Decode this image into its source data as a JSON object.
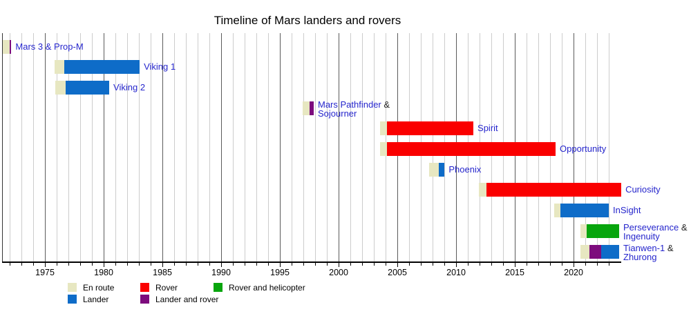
{
  "title": "Timeline of Mars landers and rovers",
  "colors": {
    "en_route": "#e7e7c1",
    "lander": "#0e6cc8",
    "rover": "#fa0000",
    "rover_helicopter": "#07a50d",
    "lander_rover": "#7d0c7d"
  },
  "text_colors": {
    "link": "#2525cc",
    "plain": "#222222"
  },
  "chart_data": {
    "type": "bar",
    "subtype": "gantt_timeline",
    "title": "Timeline of Mars landers and rovers",
    "x_axis": {
      "start": 1971.35,
      "end": 2024.06,
      "minor_tick_every_years": 1,
      "labeled_ticks": [
        1975,
        1980,
        1985,
        1990,
        1995,
        2000,
        2005,
        2010,
        2015,
        2020
      ],
      "grid": "vertical, yearly minor + darker 5-year major"
    },
    "categories": [
      "en_route",
      "lander",
      "rover",
      "rover_helicopter",
      "lander_rover"
    ],
    "rows": [
      {
        "slug": "mars-3-prop-m",
        "name": "Mars 3 & Prop-M",
        "label_lines": [
          [
            [
              "Mars 3 & Prop-M",
              "link"
            ]
          ]
        ],
        "segments": [
          {
            "cat": "en_route",
            "from": 1971.4,
            "to": 1971.99
          },
          {
            "cat": "lander_rover",
            "from": 1971.99,
            "to": 1972.14
          }
        ]
      },
      {
        "slug": "viking-1",
        "name": "Viking 1",
        "label_lines": [
          [
            [
              "Viking 1",
              "link"
            ]
          ]
        ],
        "segments": [
          {
            "cat": "en_route",
            "from": 1975.82,
            "to": 1976.65
          },
          {
            "cat": "lander",
            "from": 1976.65,
            "to": 1983.06
          }
        ]
      },
      {
        "slug": "viking-2",
        "name": "Viking 2",
        "label_lines": [
          [
            [
              "Viking 2",
              "link"
            ]
          ]
        ],
        "segments": [
          {
            "cat": "en_route",
            "from": 1975.88,
            "to": 1976.76
          },
          {
            "cat": "lander",
            "from": 1976.76,
            "to": 1980.47
          }
        ]
      },
      {
        "slug": "mars-pathfinder-sojourner",
        "name": "Mars Pathfinder & Sojourner",
        "label_lines": [
          [
            [
              "Mars Pathfinder",
              "link"
            ],
            [
              " &",
              "plain"
            ]
          ],
          [
            [
              "Sojourner",
              "link"
            ]
          ]
        ],
        "segments": [
          {
            "cat": "en_route",
            "from": 1996.94,
            "to": 1997.53
          },
          {
            "cat": "lander_rover",
            "from": 1997.53,
            "to": 1997.88
          }
        ]
      },
      {
        "slug": "spirit",
        "name": "Spirit",
        "label_lines": [
          [
            [
              "Spirit",
              "link"
            ]
          ]
        ],
        "segments": [
          {
            "cat": "en_route",
            "from": 2003.53,
            "to": 2004.12
          },
          {
            "cat": "rover",
            "from": 2004.12,
            "to": 2011.47
          }
        ]
      },
      {
        "slug": "opportunity",
        "name": "Opportunity",
        "label_lines": [
          [
            [
              "Opportunity",
              "link"
            ]
          ]
        ],
        "segments": [
          {
            "cat": "en_route",
            "from": 2003.53,
            "to": 2004.12
          },
          {
            "cat": "rover",
            "from": 2004.12,
            "to": 2018.47
          }
        ]
      },
      {
        "slug": "phoenix",
        "name": "Phoenix",
        "label_lines": [
          [
            [
              "Phoenix",
              "link"
            ]
          ]
        ],
        "segments": [
          {
            "cat": "en_route",
            "from": 2007.72,
            "to": 2008.53
          },
          {
            "cat": "lander",
            "from": 2008.53,
            "to": 2009.02
          }
        ]
      },
      {
        "slug": "curiosity",
        "name": "Curiosity",
        "label_lines": [
          [
            [
              "Curiosity",
              "link"
            ]
          ]
        ],
        "segments": [
          {
            "cat": "en_route",
            "from": 2011.94,
            "to": 2012.59
          },
          {
            "cat": "rover",
            "from": 2012.59,
            "to": 2024.06
          }
        ]
      },
      {
        "slug": "insight",
        "name": "InSight",
        "label_lines": [
          [
            [
              "InSight",
              "link"
            ]
          ]
        ],
        "segments": [
          {
            "cat": "en_route",
            "from": 2018.35,
            "to": 2018.88
          },
          {
            "cat": "lander",
            "from": 2018.88,
            "to": 2023.0
          }
        ]
      },
      {
        "slug": "perseverance-ingenuity",
        "name": "Perseverance & Ingenuity",
        "label_lines": [
          [
            [
              "Perseverance",
              "link"
            ],
            [
              " &",
              "plain"
            ]
          ],
          [
            [
              "Ingenuity",
              "link"
            ]
          ]
        ],
        "segments": [
          {
            "cat": "en_route",
            "from": 2020.59,
            "to": 2021.12
          },
          {
            "cat": "rover_helicopter",
            "from": 2021.12,
            "to": 2023.88
          }
        ]
      },
      {
        "slug": "tianwen-1-zhurong",
        "name": "Tianwen-1 & Zhurong",
        "label_lines": [
          [
            [
              "Tianwen-1",
              "link"
            ],
            [
              " &",
              "plain"
            ]
          ],
          [
            [
              "Zhurong",
              "link"
            ]
          ]
        ],
        "segments": [
          {
            "cat": "en_route",
            "from": 2020.59,
            "to": 2021.35
          },
          {
            "cat": "lander_rover",
            "from": 2021.35,
            "to": 2022.35
          },
          {
            "cat": "lander",
            "from": 2022.35,
            "to": 2023.88
          }
        ]
      }
    ]
  },
  "legend": {
    "items": [
      {
        "label": "En route",
        "cat": "en_route",
        "col": 0,
        "row": 0
      },
      {
        "label": "Rover",
        "cat": "rover",
        "col": 1,
        "row": 0
      },
      {
        "label": "Rover and helicopter",
        "cat": "rover_helicopter",
        "col": 2,
        "row": 0
      },
      {
        "label": "Lander",
        "cat": "lander",
        "col": 0,
        "row": 1
      },
      {
        "label": "Lander and rover",
        "cat": "lander_rover",
        "col": 1,
        "row": 1
      }
    ]
  }
}
